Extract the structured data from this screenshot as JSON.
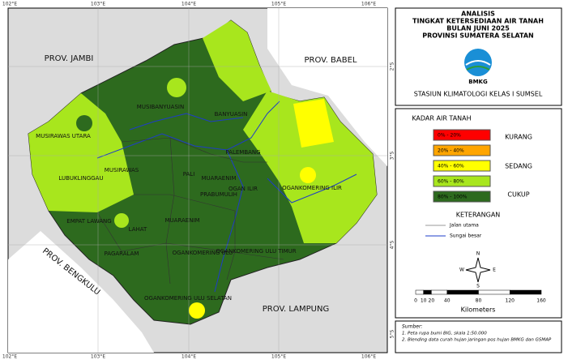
{
  "map": {
    "graticule_top": [
      "102°E",
      "103°E",
      "104°E",
      "105°E",
      "106°E"
    ],
    "graticule_bottom": [
      "102°E",
      "103°E",
      "104°E",
      "105°E",
      "106°E"
    ],
    "graticule_side": [
      "2°S",
      "3°S",
      "4°S",
      "5°S"
    ],
    "labels": [
      "PROV. JAMBI",
      "PROV. BABEL",
      "PROV. BENGKULU",
      "PROV. LAMPUNG",
      "MUSIBANYUASIN",
      "BANYUASIN",
      "MUSIRAWAS UTARA",
      "MUSIRAWAS",
      "LUBUKLINGGAU",
      "PALEMBANG",
      "OGANKOMERING ILIR",
      "PALI",
      "MUARAENIM",
      "PRABUMULIH",
      "OGAN ILIR",
      "EMPAT LAWANG",
      "LAHAT",
      "MUARAENIM",
      "PAGARALAM",
      "OGANKOMERING ULU",
      "OGANKOMERING ULU TIMUR",
      "OGANKOMERING ULU SELATAN"
    ]
  },
  "header": {
    "title": [
      "ANALISIS",
      "TINGKAT KETERSEDIAAN AIR TANAH",
      "BULAN JUNI 2025",
      "PROVINSI SUMATERA SELATAN"
    ],
    "logo": "BMKG",
    "station": "STASIUN KLIMATOLOGI KELAS I SUMSEL"
  },
  "legend": {
    "title": "KADAR AIR TANAH",
    "classes": [
      {
        "label": "0% - 20%",
        "color": "#ff0000"
      },
      {
        "label": "20% - 40%",
        "color": "#ffa500"
      },
      {
        "label": "40% - 60%",
        "color": "#ffff00"
      },
      {
        "label": "60% - 80%",
        "color": "#a8e61d"
      },
      {
        "label": "80% - 100%",
        "color": "#2d6a1e"
      }
    ],
    "groups": [
      "KURANG",
      "SEDANG",
      "CUKUP"
    ]
  },
  "notes": {
    "title": "KETERANGAN",
    "items": [
      "Jalan utama",
      "Sungai besar"
    ]
  },
  "compass": [
    "N",
    "S",
    "E",
    "W"
  ],
  "scale": {
    "ticks": [
      0,
      10,
      20,
      40,
      80,
      120,
      160
    ],
    "unit": "Kilometers"
  },
  "source": {
    "title": "Sumber:",
    "items": [
      "1. Peta rupa bumi BIG, skala 1:50.000",
      "2. Blending data curah hujan jaringan pos hujan BMKG dan GSMAP"
    ]
  }
}
